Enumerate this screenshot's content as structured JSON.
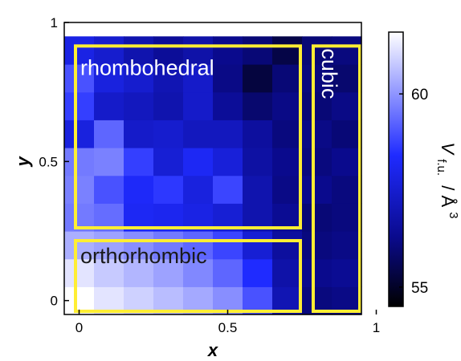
{
  "chart_data": {
    "type": "heatmap",
    "xlabel": "x",
    "ylabel": "y",
    "xlim": [
      -0.05,
      0.95
    ],
    "ylim": [
      -0.05,
      1.0
    ],
    "x_ticks": [
      {
        "value": 0,
        "label": "0"
      },
      {
        "value": 0.5,
        "label": "0.5"
      },
      {
        "value": 1,
        "label": "1"
      }
    ],
    "y_ticks": [
      {
        "value": 0,
        "label": "0"
      },
      {
        "value": 0.5,
        "label": "0.5"
      },
      {
        "value": 1,
        "label": "1"
      }
    ],
    "grid_x": [
      0,
      0.1,
      0.2,
      0.3,
      0.4,
      0.5,
      0.6,
      0.7,
      0.8,
      0.9
    ],
    "grid_y": [
      0,
      0.1,
      0.2,
      0.3,
      0.4,
      0.5,
      0.6,
      0.7,
      0.8,
      0.9
    ],
    "grid_step": 0.1,
    "values": [
      [
        61.6,
        61.2,
        60.9,
        60.6,
        60.3,
        59.9,
        59.0,
        57.0,
        56.1,
        56.2
      ],
      [
        61.2,
        60.8,
        60.5,
        60.2,
        59.8,
        59.3,
        58.4,
        56.8,
        56.3,
        56.4
      ],
      [
        60.4,
        60.2,
        59.9,
        59.6,
        59.3,
        58.8,
        57.6,
        56.6,
        56.1,
        56.2
      ],
      [
        59.6,
        59.4,
        58.2,
        58.1,
        57.9,
        57.6,
        56.9,
        56.4,
        56.0,
        56.1
      ],
      [
        59.7,
        59.0,
        58.3,
        58.6,
        57.8,
        58.8,
        56.9,
        56.2,
        56.3,
        56.1
      ],
      [
        59.6,
        59.7,
        58.7,
        57.6,
        58.2,
        57.7,
        56.7,
        56.3,
        56.1,
        56.3
      ],
      [
        57.8,
        59.3,
        57.4,
        57.5,
        57.2,
        57.2,
        56.6,
        56.1,
        56.2,
        56.0
      ],
      [
        58.7,
        57.4,
        57.2,
        56.9,
        57.4,
        56.5,
        55.9,
        56.2,
        56.0,
        56.2
      ],
      [
        59.0,
        57.8,
        57.5,
        57.0,
        57.4,
        56.2,
        55.3,
        56.0,
        56.1,
        55.9
      ],
      [
        57.9,
        57.5,
        56.9,
        56.5,
        56.8,
        56.3,
        56.0,
        55.4,
        56.0,
        56.1
      ]
    ],
    "colorbar": {
      "label_main": "V",
      "label_sub": "f.u.",
      "label_unit": "Å",
      "label_exp": "3",
      "min": 54.5,
      "max": 61.6,
      "ticks": [
        {
          "value": 60,
          "label": "60"
        },
        {
          "value": 55,
          "label": "55"
        }
      ],
      "colors": [
        "#000000",
        "#0a0a8c",
        "#1f2bff",
        "#ffffff"
      ],
      "color_stops": [
        0,
        0.25,
        0.55,
        1
      ]
    },
    "regions": [
      {
        "label": "rhombohedral",
        "x_range": [
          -0.05,
          0.75
        ],
        "y_range": [
          0.25,
          0.95
        ],
        "text_color": "#ffffff"
      },
      {
        "label": "orthorhombic",
        "x_range": [
          -0.05,
          0.75
        ],
        "y_range": [
          -0.05,
          0.25
        ],
        "text_color": "#1a1a1a"
      },
      {
        "label": "cubic",
        "x_range": [
          0.75,
          0.95
        ],
        "y_range": [
          -0.05,
          0.95
        ],
        "text_color": "#ffffff"
      }
    ],
    "region_outline_color": "#ffee33"
  }
}
